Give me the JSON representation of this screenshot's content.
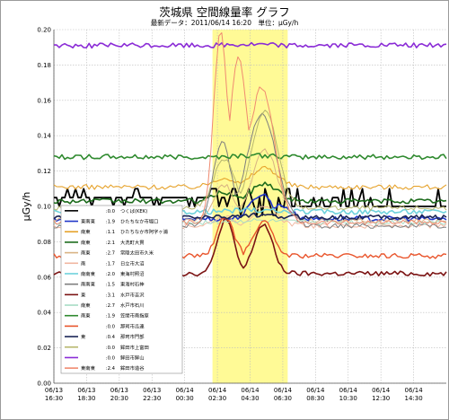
{
  "page": {
    "title": "茨城県 空間線量率 グラフ",
    "subtitle": "最新データ：2011/06/14 16:20　単位：μGy/h"
  },
  "chart_data": {
    "type": "line",
    "ylabel": "μGy/h",
    "xlabel": "",
    "ylim": [
      0,
      0.2
    ],
    "yticks": [
      "0.00",
      "0.02",
      "0.04",
      "0.06",
      "0.08",
      "0.10",
      "0.12",
      "0.14",
      "0.16",
      "0.18",
      "0.20"
    ],
    "xticks": [
      [
        "06/13",
        "16:30"
      ],
      [
        "06/13",
        "18:30"
      ],
      [
        "06/13",
        "20:30"
      ],
      [
        "06/13",
        "22:30"
      ],
      [
        "06/14",
        "00:30"
      ],
      [
        "06/14",
        "02:30"
      ],
      [
        "06/14",
        "04:30"
      ],
      [
        "06/14",
        "06:30"
      ],
      [
        "06/14",
        "08:30"
      ],
      [
        "06/14",
        "10:30"
      ],
      [
        "06/14",
        "12:30"
      ],
      [
        "06/14",
        "14:30"
      ]
    ],
    "x_start_hours": 16.5,
    "x_end_hours": 40.5,
    "highlight_hours": [
      26.2,
      30.8
    ],
    "highlight_color": "#fffa96",
    "grid": true,
    "legend_position": "lower-left",
    "series": [
      {
        "dir": "",
        "ws": "0.0",
        "name": "つくば(KEK)",
        "color": "#000000",
        "width": 1.8,
        "profile": "kek"
      },
      {
        "dir": "東南東",
        "ws": "1.9",
        "name": "ひたちなか市堀口",
        "color": "#1f35c8",
        "width": 1.6,
        "base": 0.093,
        "peak": 0.107,
        "profile": "late"
      },
      {
        "dir": "南東",
        "ws": "1.1",
        "name": "ひたちなか市阿字ヶ浦",
        "color": "#e6a22a",
        "width": 1.1,
        "base": 0.111,
        "peak": 0.122,
        "profile": "mid"
      },
      {
        "dir": "南東",
        "ws": "2.1",
        "name": "大洗町大貫",
        "color": "#1c6b1c",
        "width": 1.6,
        "base": 0.103,
        "peak": 0.113,
        "profile": "mid"
      },
      {
        "dir": "南東",
        "ws": "2.7",
        "name": "常陸太田市久米",
        "color": "#d9b383",
        "width": 1.0,
        "base": 0.092,
        "peak": 0.132,
        "profile": "mid"
      },
      {
        "dir": "南",
        "ws": "1.7",
        "name": "日立市大沼",
        "color": "#f0b6a0",
        "width": 1.0,
        "base": 0.089,
        "peak": 0.099,
        "profile": "mid"
      },
      {
        "dir": "南南東",
        "ws": "2.0",
        "name": "東海村照沼",
        "color": "#6fd2dc",
        "width": 1.6,
        "base": 0.097,
        "peak": 0.1,
        "profile": "flat"
      },
      {
        "dir": "南南東",
        "ws": "1.5",
        "name": "東海村石神",
        "color": "#7e7e7e",
        "width": 1.0,
        "base": 0.089,
        "peak": 0.152,
        "profile": "big"
      },
      {
        "dir": "東",
        "ws": "3.1",
        "name": "水戸市吉沢",
        "color": "#7b1313",
        "width": 1.6,
        "base": 0.062,
        "peak": 0.093,
        "profile": "double"
      },
      {
        "dir": "南東",
        "ws": "2.7",
        "name": "水戸市石川",
        "color": "#a8dcc4",
        "width": 1.0,
        "base": 0.091,
        "peak": 0.094,
        "profile": "flat"
      },
      {
        "dir": "南東",
        "ws": "1.9",
        "name": "笠間市南指原",
        "color": "#2f8a2f",
        "width": 1.6,
        "base": 0.128,
        "peak": 0.131,
        "profile": "flat"
      },
      {
        "dir": "",
        "ws": "0.0",
        "name": "那珂市瓜連",
        "color": "#e9552c",
        "width": 1.4,
        "base": 0.072,
        "peak": 0.094,
        "profile": "double"
      },
      {
        "dir": "東",
        "ws": "0.4",
        "name": "那珂市門部",
        "color": "#1a2455",
        "width": 1.6,
        "base": 0.094,
        "peak": 0.097,
        "profile": "flat"
      },
      {
        "dir": "",
        "ws": "0.0",
        "name": "鉾田市上富田",
        "color": "#b7b76e",
        "width": 1.0,
        "base": 0.099,
        "peak": 0.154,
        "profile": "mid"
      },
      {
        "dir": "",
        "ws": "0.0",
        "name": "鉾田市鉾山",
        "color": "#8a2bd6",
        "width": 1.6,
        "base": 0.191,
        "peak": 0.193,
        "profile": "flat"
      },
      {
        "dir": "東南東",
        "ws": "2.4",
        "name": "鉾田市造谷",
        "color": "#f08a70",
        "width": 1.0,
        "base": 0.091,
        "peak": 0.2,
        "profile": "huge"
      }
    ]
  }
}
